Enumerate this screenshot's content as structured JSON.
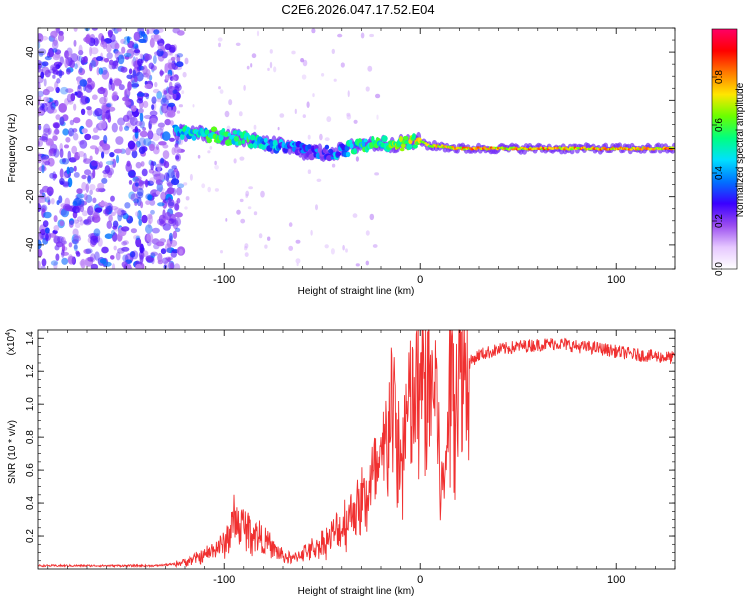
{
  "title": "C2E6.2026.047.17.52.E04",
  "chart_data": [
    {
      "type": "heatmap",
      "xlabel": "Height of straight line (km)",
      "ylabel": "Frequency (Hz)",
      "xlim": [
        -195,
        130
      ],
      "ylim": [
        -50,
        50
      ],
      "xticks": [
        -100,
        0,
        100
      ],
      "yticks": [
        -40,
        -20,
        0,
        20,
        40
      ],
      "colorbar": {
        "label": "Normalized spectral amplitude",
        "range": [
          0.0,
          1.0
        ],
        "ticks": [
          0.0,
          0.2,
          0.4,
          0.6,
          0.8
        ],
        "tick_labels": [
          "0.0",
          "0.2",
          "0.4",
          "0.6",
          "0.8"
        ],
        "colormap": [
          "#ffffff",
          "#e6c8ff",
          "#9a4cf0",
          "#3a00ff",
          "#0072ff",
          "#00e0ff",
          "#00ff80",
          "#6aff00",
          "#ffe600",
          "#ff7a00",
          "#ff0000",
          "#ff0066"
        ]
      },
      "noise_region_x": [
        -195,
        -130
      ],
      "signal_track": {
        "x": [
          -125,
          -110,
          -100,
          -90,
          -80,
          -70,
          -60,
          -50,
          -40,
          -30,
          -20,
          -10,
          0,
          5,
          10,
          20,
          40,
          60,
          80,
          100,
          130
        ],
        "freq": [
          7,
          6,
          5,
          4,
          2,
          1,
          -1,
          -2,
          -1,
          2,
          2,
          2,
          3,
          1,
          1,
          0,
          0,
          0,
          0,
          0,
          0
        ],
        "amplitude": [
          0.45,
          0.5,
          0.5,
          0.5,
          0.4,
          0.35,
          0.3,
          0.3,
          0.4,
          0.5,
          0.5,
          0.6,
          0.65,
          0.65,
          0.7,
          0.75,
          0.75,
          0.75,
          0.75,
          0.75,
          0.75
        ]
      }
    },
    {
      "type": "line",
      "xlabel": "Height of straight line (km)",
      "ylabel": "SNR (10 * v/v)",
      "multiplier_label": "(x10",
      "multiplier_exp": "4",
      "xlim": [
        -195,
        130
      ],
      "ylim": [
        0,
        1.45
      ],
      "xticks": [
        -100,
        0,
        100
      ],
      "yticks": [
        0.2,
        0.4,
        0.6,
        0.8,
        1.0,
        1.2,
        1.4
      ],
      "ytick_labels": [
        "0.2",
        "0.4",
        "0.6",
        "0.8",
        "1.0",
        "1.2",
        "1.4"
      ],
      "color": "#f03030",
      "series": [
        {
          "x": [
            -195,
            -170,
            -150,
            -135,
            -125,
            -118,
            -110,
            -105,
            -100,
            -95,
            -90,
            -85,
            -80,
            -75,
            -70,
            -65,
            -60,
            -55,
            -50,
            -45,
            -40,
            -35,
            -30,
            -25,
            -20,
            -17,
            -15,
            -12,
            -10,
            -7,
            -5,
            -2,
            0,
            3,
            5,
            8,
            10,
            12,
            14,
            16,
            20,
            25,
            30,
            40,
            50,
            60,
            70,
            80,
            90,
            100,
            110,
            120,
            130
          ],
          "y": [
            0.02,
            0.02,
            0.02,
            0.02,
            0.03,
            0.05,
            0.08,
            0.12,
            0.15,
            0.28,
            0.25,
            0.22,
            0.18,
            0.12,
            0.08,
            0.06,
            0.1,
            0.12,
            0.15,
            0.2,
            0.25,
            0.35,
            0.4,
            0.5,
            0.6,
            0.75,
            1.1,
            0.75,
            0.6,
            0.9,
            0.95,
            1.05,
            1.05,
            1.1,
            1.1,
            1.15,
            0.6,
            0.45,
            0.9,
            1.2,
            1.2,
            1.25,
            1.3,
            1.33,
            1.35,
            1.36,
            1.37,
            1.35,
            1.34,
            1.32,
            1.3,
            1.29,
            1.28
          ]
        }
      ]
    }
  ]
}
